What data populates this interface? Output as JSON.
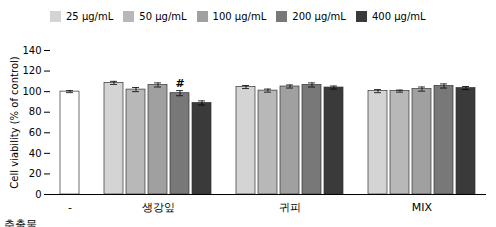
{
  "chart_data": {
    "type": "bar",
    "categories": [
      "-",
      "생강잎",
      "귀피",
      "MIX"
    ],
    "xlabel": "추출물",
    "ylabel": "Cell viability (% of control)",
    "ylim": [
      0,
      140
    ],
    "yticks": [
      0,
      20,
      40,
      60,
      80,
      100,
      120,
      140
    ],
    "grid": false,
    "legend": "top",
    "edge_color": "#333333",
    "series": [
      {
        "color": "#ffffff",
        "values": [
          100.0,
          null,
          null,
          null
        ],
        "errors": [
          1.0,
          null,
          null,
          null
        ]
      },
      {
        "name": "25 μg/mL",
        "color": "#d4d4d4",
        "values": [
          null,
          108.5,
          104.5,
          100.5
        ],
        "errors": [
          null,
          1.5,
          1.5,
          1.5
        ]
      },
      {
        "name": "50 μg/mL",
        "color": "#b8b8b8",
        "values": [
          null,
          102.0,
          101.0,
          100.5
        ],
        "errors": [
          null,
          2.0,
          1.5,
          1.0
        ]
      },
      {
        "name": "100 μg/mL",
        "color": "#a0a0a0",
        "values": [
          null,
          106.5,
          105.0,
          102.5
        ],
        "errors": [
          null,
          2.0,
          1.5,
          2.0
        ]
      },
      {
        "name": "200 μg/mL",
        "color": "#787878",
        "values": [
          null,
          98.5,
          106.5,
          105.5
        ],
        "errors": [
          null,
          2.5,
          2.0,
          2.0
        ]
      },
      {
        "name": "400 μg/mL",
        "color": "#3a3a3a",
        "values": [
          null,
          89.0,
          104.0,
          103.5
        ],
        "errors": [
          null,
          2.0,
          1.5,
          1.5
        ]
      }
    ],
    "annotations": [
      {
        "text": "#",
        "category": "생강잎",
        "series": "200 μg/mL"
      }
    ]
  }
}
